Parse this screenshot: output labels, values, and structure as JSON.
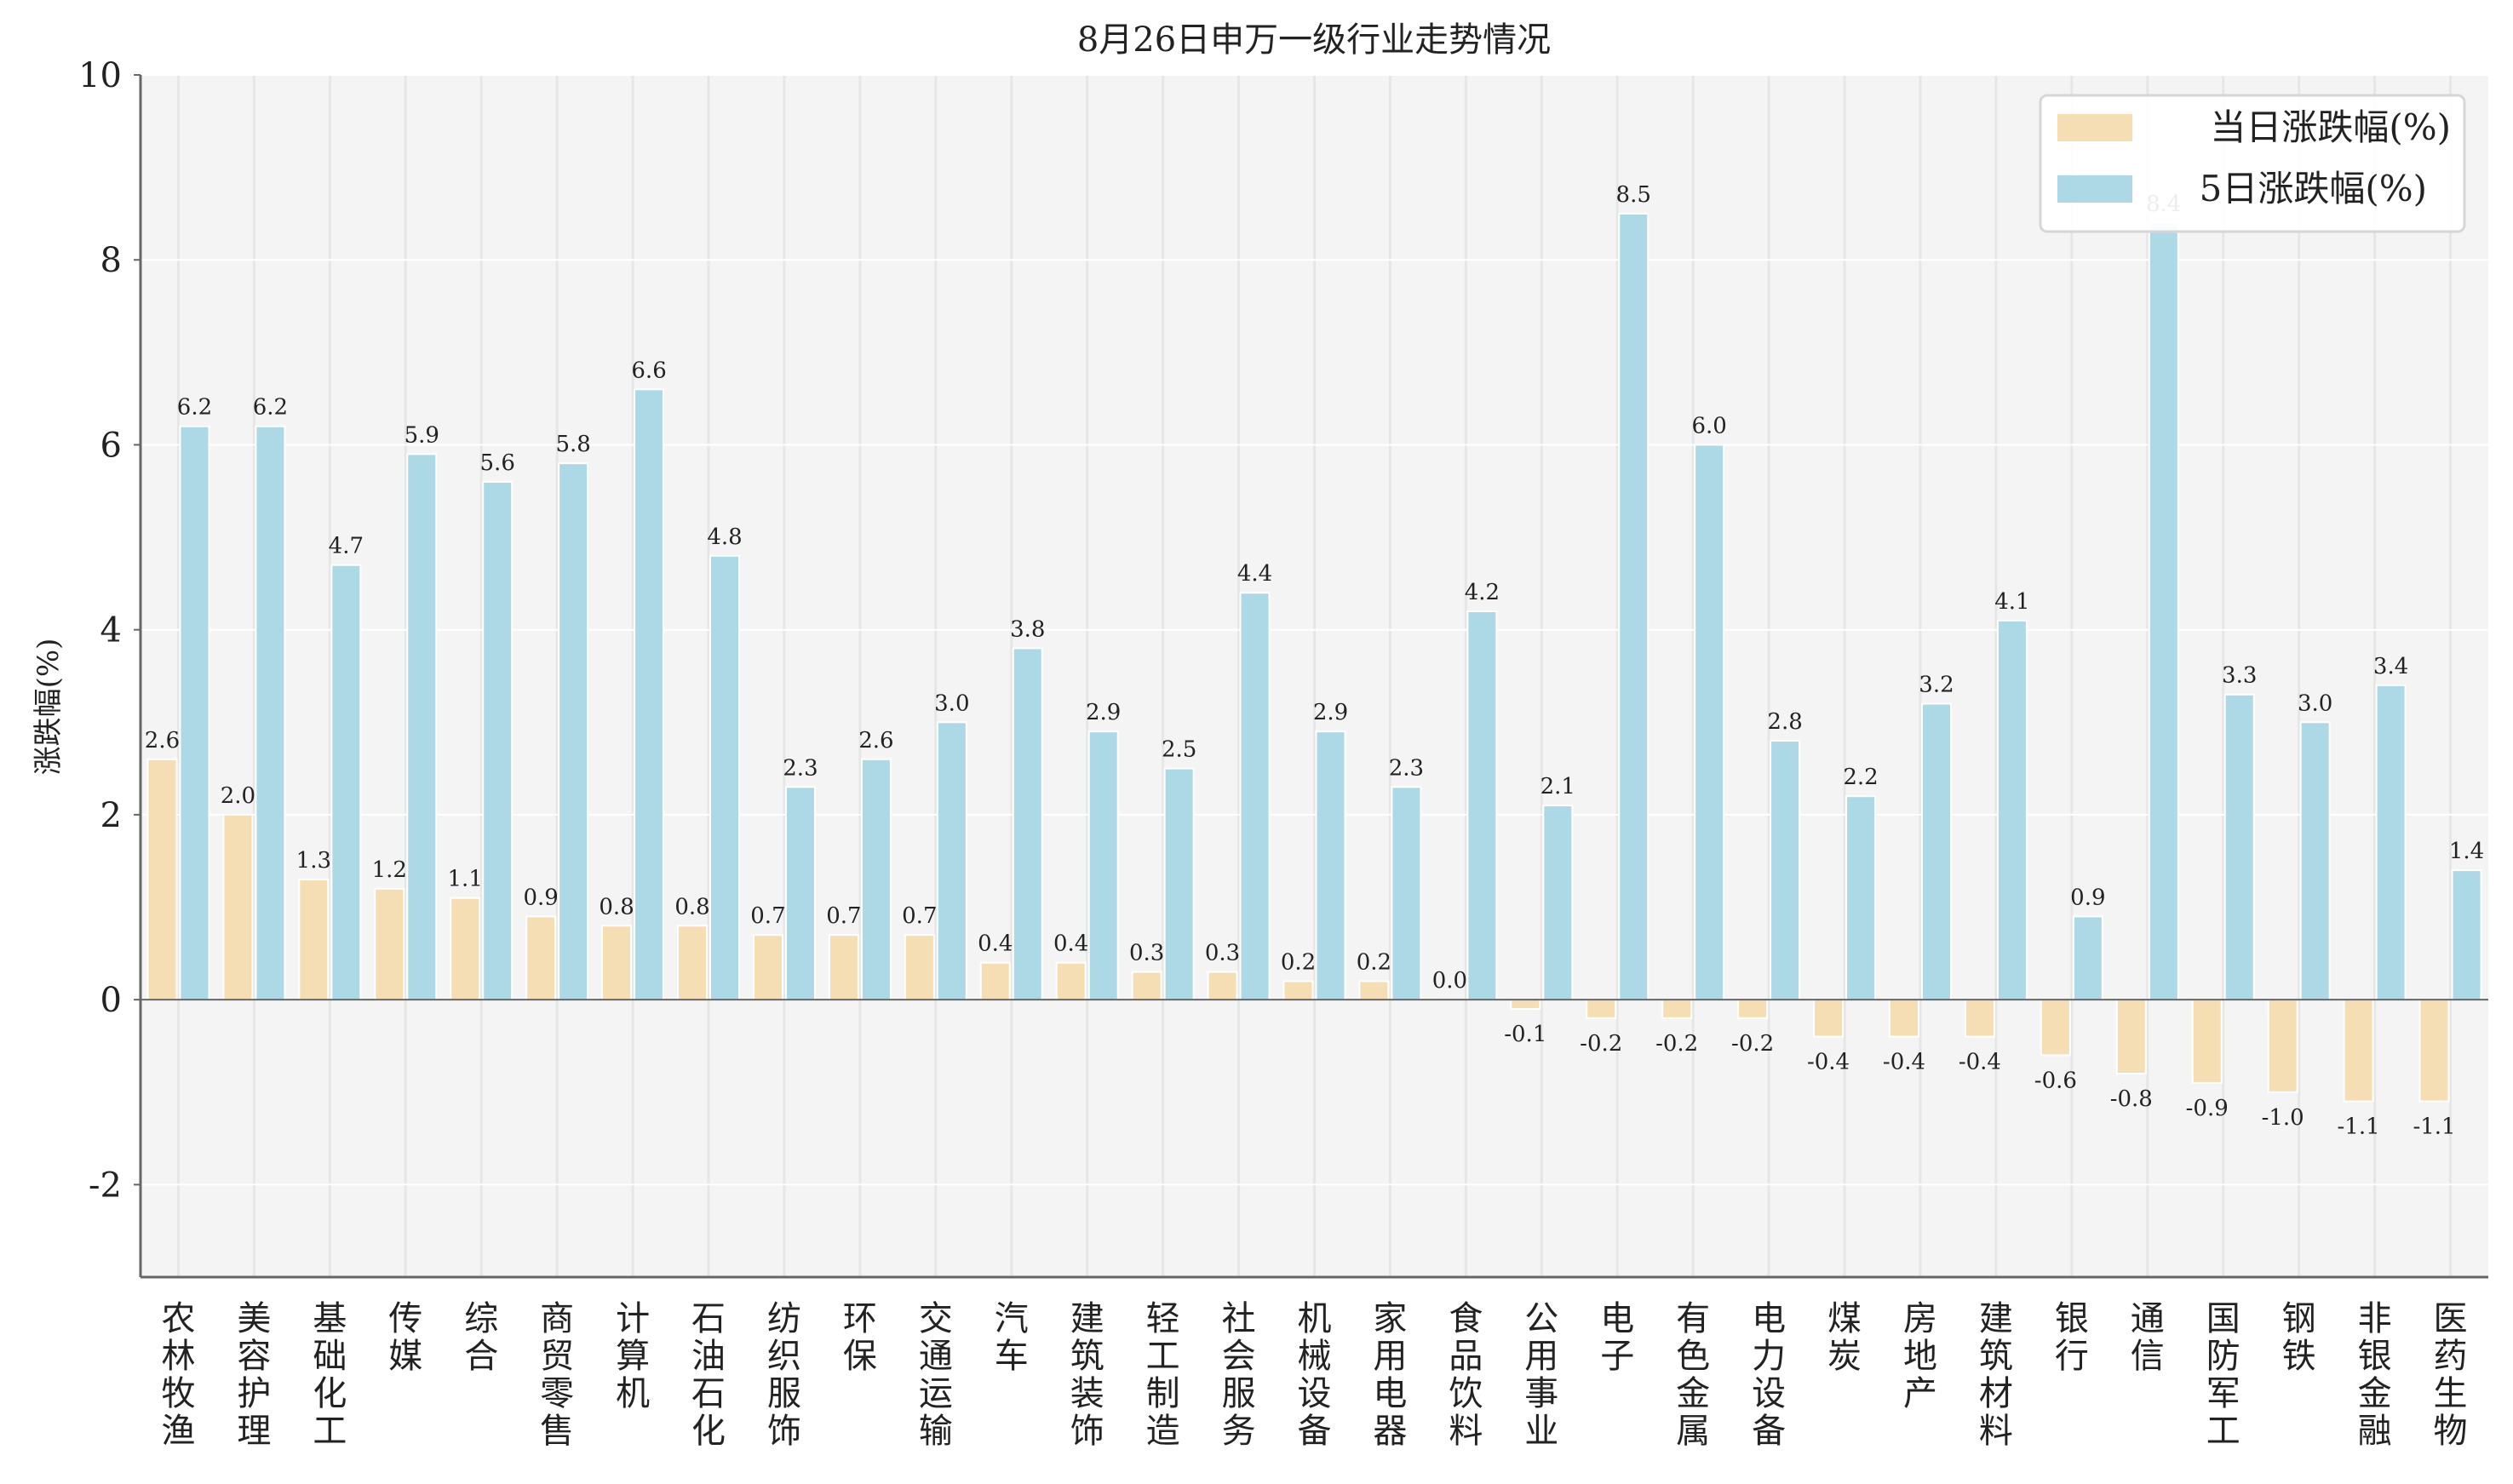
{
  "chart_data": {
    "type": "bar",
    "title": "8月26日申万一级行业走势情况",
    "xlabel": "",
    "ylabel": "涨跌幅(%)",
    "ylim": [
      -3,
      10
    ],
    "yticks": [
      -2,
      0,
      2,
      4,
      6,
      8,
      10
    ],
    "grid": true,
    "legend_position": "top-right",
    "categories": [
      "农林牧渔",
      "美容护理",
      "基础化工",
      "传媒",
      "综合",
      "商贸零售",
      "计算机",
      "石油石化",
      "纺织服饰",
      "环保",
      "交通运输",
      "汽车",
      "建筑装饰",
      "轻工制造",
      "社会服务",
      "机械设备",
      "家用电器",
      "食品饮料",
      "公用事业",
      "电子",
      "有色金属",
      "电力设备",
      "煤炭",
      "房地产",
      "建筑材料",
      "银行",
      "通信",
      "国防军工",
      "钢铁",
      "非银金融",
      "医药生物"
    ],
    "series": [
      {
        "name": "当日涨跌幅(%)",
        "color": "#f5deb3",
        "values": [
          2.6,
          2.0,
          1.3,
          1.2,
          1.1,
          0.9,
          0.8,
          0.8,
          0.7,
          0.7,
          0.7,
          0.4,
          0.4,
          0.3,
          0.3,
          0.2,
          0.2,
          0.0,
          -0.1,
          -0.2,
          -0.2,
          -0.2,
          -0.4,
          -0.4,
          -0.4,
          -0.6,
          -0.8,
          -0.9,
          -1.0,
          -1.1,
          -1.1
        ]
      },
      {
        "name": "5日涨跌幅(%)",
        "color": "#add8e6",
        "values": [
          6.2,
          6.2,
          4.7,
          5.9,
          5.6,
          5.8,
          6.6,
          4.8,
          2.3,
          2.6,
          3.0,
          3.8,
          2.9,
          2.5,
          4.4,
          2.9,
          2.3,
          4.2,
          2.1,
          8.5,
          6.0,
          2.8,
          2.2,
          3.2,
          4.1,
          0.9,
          8.4,
          3.3,
          3.0,
          3.4,
          1.4
        ]
      }
    ]
  }
}
